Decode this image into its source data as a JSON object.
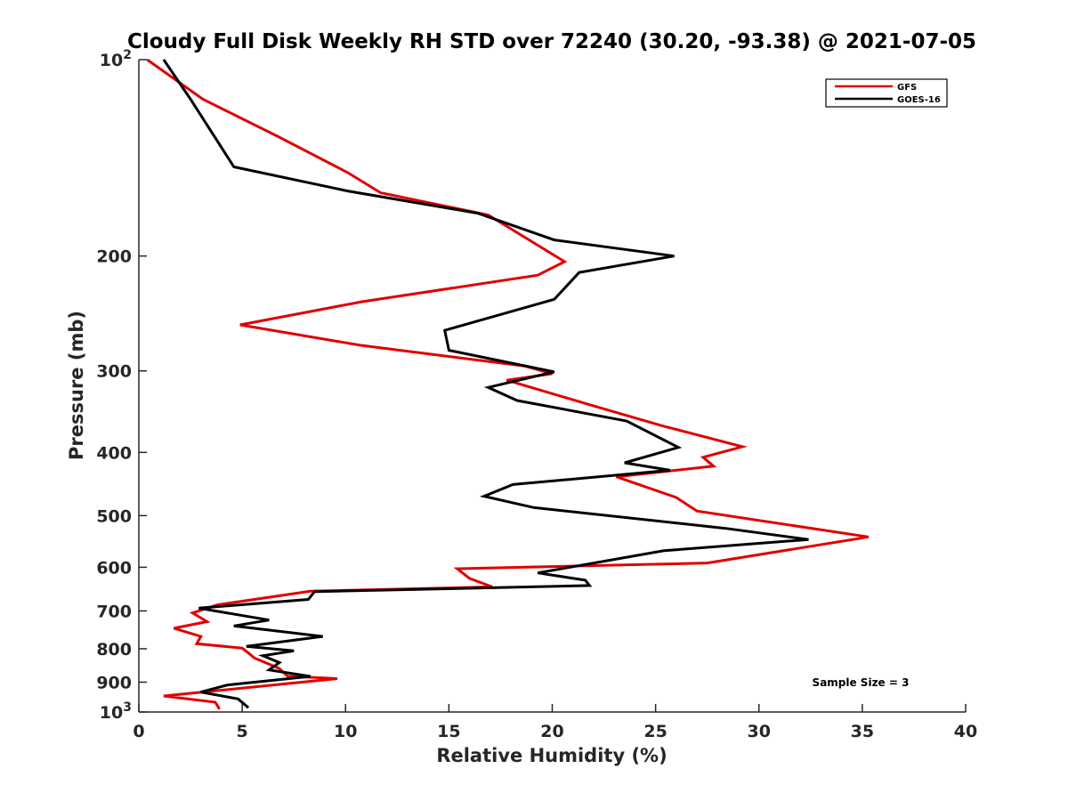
{
  "chart_data": {
    "type": "line",
    "title": "Cloudy Full Disk Weekly RH STD over 72240 (30.20, -93.38) @ 2021-07-05",
    "xlabel": "Relative Humidity (%)",
    "ylabel": "Pressure (mb)",
    "xlim": [
      0,
      40
    ],
    "ylim": [
      100,
      1000
    ],
    "yscale": "log",
    "y_reversed": true,
    "grid": false,
    "legend_position": "top-right",
    "x_ticks": [
      0,
      5,
      10,
      15,
      20,
      25,
      30,
      35,
      40
    ],
    "x_tick_labels": [
      "0",
      "5",
      "10",
      "15",
      "20",
      "25",
      "30",
      "35",
      "40"
    ],
    "y_ticks": [
      100,
      200,
      300,
      400,
      500,
      600,
      700,
      800,
      900,
      1000
    ],
    "y_tick_labels": [
      {
        "base": "10",
        "exp": "2"
      },
      {
        "base": "200",
        "exp": ""
      },
      {
        "base": "300",
        "exp": ""
      },
      {
        "base": "400",
        "exp": ""
      },
      {
        "base": "500",
        "exp": ""
      },
      {
        "base": "600",
        "exp": ""
      },
      {
        "base": "700",
        "exp": ""
      },
      {
        "base": "800",
        "exp": ""
      },
      {
        "base": "900",
        "exp": ""
      },
      {
        "base": "10",
        "exp": "3"
      }
    ],
    "annotation": "Sample Size = 3",
    "series": [
      {
        "name": "GFS",
        "color": "#e00000",
        "rh": [
          0.4,
          3.1,
          6.7,
          10.1,
          11.7,
          16.9,
          20.6,
          19.3,
          10.8,
          4.9,
          10.7,
          18.7,
          20.0,
          17.8,
          21.8,
          25.3,
          29.2,
          27.3,
          27.8,
          23.1,
          26.0,
          27.0,
          35.3,
          27.5,
          15.4,
          16.0,
          17.1,
          8.3,
          3.8,
          2.6,
          3.3,
          1.7,
          3.0,
          2.8,
          5.0,
          5.3,
          5.6,
          6.2,
          6.8,
          7.0,
          7.2,
          9.6,
          1.2,
          3.7,
          3.9
        ],
        "pressure": [
          100,
          115,
          131,
          149,
          160,
          173,
          204,
          214,
          235,
          255,
          274,
          295,
          303,
          310,
          338,
          364,
          392,
          407,
          420,
          436,
          469,
          492,
          539,
          591,
          603,
          624,
          643,
          653,
          685,
          705,
          727,
          744,
          766,
          786,
          798,
          812,
          827,
          842,
          858,
          870,
          881,
          889,
          945,
          966,
          990
        ]
      },
      {
        "name": "GOES-16",
        "color": "#000000",
        "rh": [
          1.2,
          2.5,
          4.6,
          10.1,
          16.4,
          20.1,
          25.9,
          21.3,
          20.1,
          14.8,
          15.0,
          20.1,
          16.9,
          18.3,
          23.6,
          26.1,
          23.5,
          25.7,
          18.1,
          16.7,
          19.1,
          28.4,
          32.4,
          25.4,
          19.3,
          21.6,
          21.8,
          8.5,
          8.2,
          2.9,
          6.3,
          4.6,
          8.9,
          5.2,
          7.5,
          6.0,
          6.8,
          6.3,
          8.3,
          4.3,
          3.0,
          4.8,
          5.3
        ],
        "pressure": [
          100,
          115,
          146,
          159,
          172,
          189,
          200,
          212,
          233,
          260,
          279,
          301,
          318,
          333,
          358,
          393,
          415,
          426,
          448,
          467,
          486,
          523,
          544,
          566,
          612,
          628,
          640,
          654,
          672,
          693,
          723,
          738,
          766,
          793,
          806,
          820,
          840,
          862,
          882,
          909,
          932,
          955,
          985
        ]
      }
    ]
  }
}
